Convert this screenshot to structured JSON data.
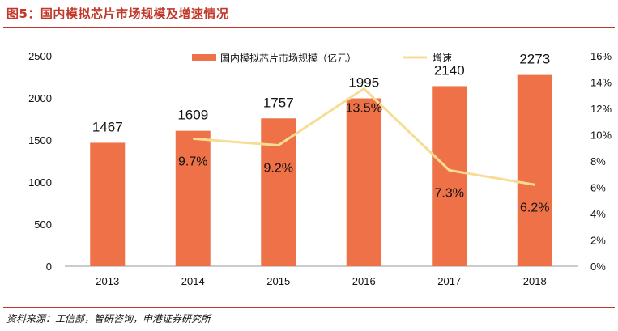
{
  "figure": {
    "title": "图5：国内模拟芯片市场规模及增速情况",
    "source": "资料来源：工信部，智研咨询，申港证券研究所"
  },
  "chart_data": {
    "type": "bar",
    "categories": [
      "2013",
      "2014",
      "2015",
      "2016",
      "2017",
      "2018"
    ],
    "series": [
      {
        "name": "国内模拟芯片市场规模（亿元）",
        "type": "bar",
        "axis": "left",
        "values": [
          1467,
          1609,
          1757,
          1995,
          2140,
          2273
        ],
        "color": "#ee7148"
      },
      {
        "name": "增速",
        "type": "line",
        "axis": "right",
        "values": [
          null,
          9.7,
          9.2,
          13.5,
          7.3,
          6.2
        ],
        "color": "#f7dd94"
      }
    ],
    "bar_labels": [
      "1467",
      "1609",
      "1757",
      "1995",
      "2140",
      "2273"
    ],
    "line_labels": [
      "",
      "9.7%",
      "9.2%",
      "13.5%",
      "7.3%",
      "6.2%"
    ],
    "y_left": {
      "min": 0,
      "max": 2500,
      "ticks": [
        "0",
        "500",
        "1000",
        "1500",
        "2000",
        "2500"
      ]
    },
    "y_right": {
      "min": 0,
      "max": 16,
      "ticks": [
        "0%",
        "2%",
        "4%",
        "6%",
        "8%",
        "10%",
        "12%",
        "14%",
        "16%"
      ]
    },
    "grid": false,
    "legend_position": "top-center"
  }
}
